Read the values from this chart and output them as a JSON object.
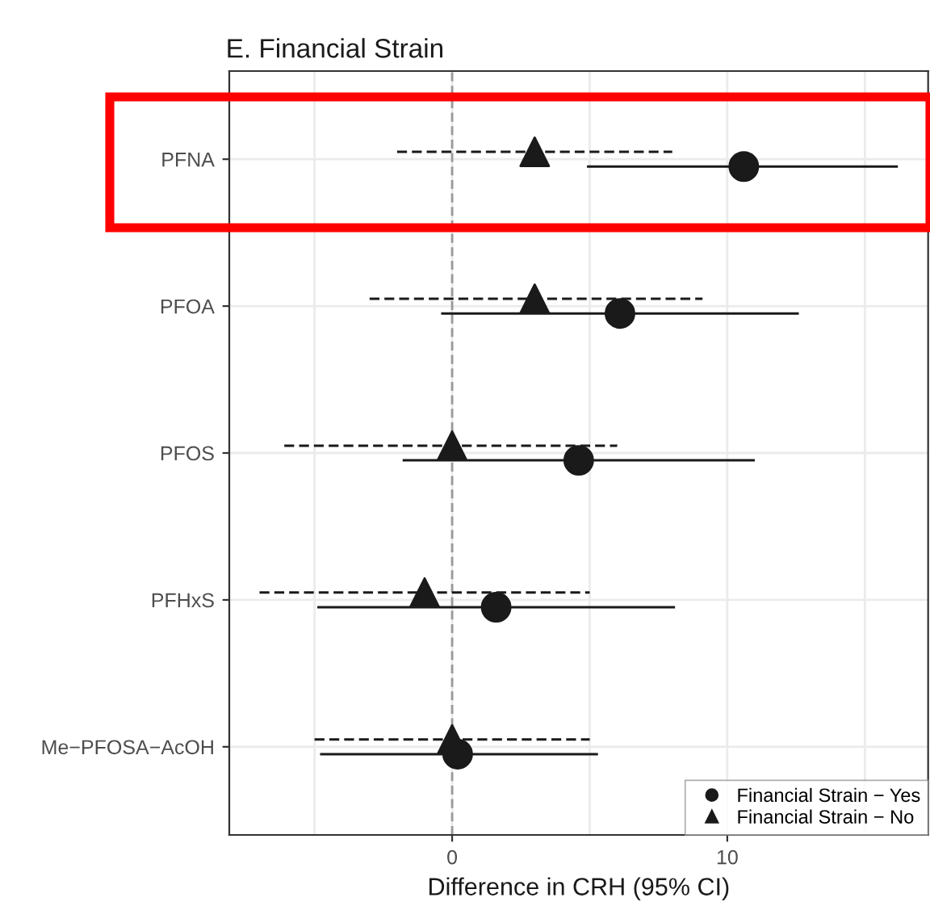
{
  "chart_data": {
    "type": "scatter",
    "orientation": "horizontal",
    "title": "E. Financial Strain",
    "xlabel": "Difference in CRH (95% CI)",
    "categories": [
      "PFNA",
      "PFOA",
      "PFOS",
      "PFHxS",
      "Me−PFOSA−AcOH"
    ],
    "series": [
      {
        "name": "Financial Strain − Yes",
        "color": "#1a1a1a",
        "marker": "circle",
        "line_style": "solid",
        "values": [
          10.6,
          6.1,
          4.6,
          1.6,
          0.2
        ],
        "errors": [
          [
            4.9,
            16.2
          ],
          [
            -0.4,
            12.6
          ],
          [
            -1.8,
            11.0
          ],
          [
            -4.9,
            8.1
          ],
          [
            -4.8,
            5.3
          ]
        ]
      },
      {
        "name": "Financial Strain − No",
        "color": "#1a1a1a",
        "marker": "triangle",
        "line_style": "dashed",
        "values": [
          3.0,
          3.0,
          0.0,
          -1.0,
          0.0
        ],
        "errors": [
          [
            -2.0,
            8.0
          ],
          [
            -3.0,
            9.1
          ],
          [
            -6.1,
            6.0
          ],
          [
            -7.0,
            5.0
          ],
          [
            -5.0,
            5.0
          ]
        ]
      }
    ],
    "xlim": [
      -8.1,
      17.3
    ],
    "xticks": [
      {
        "value": -5,
        "label": null
      },
      0,
      {
        "value": 5,
        "label": null
      },
      10,
      {
        "value": 15,
        "label": null
      }
    ],
    "ref_lines": [
      {
        "axis": "x",
        "value": 0,
        "label": null,
        "color": "#999999",
        "line_style": "dashed"
      }
    ],
    "grid": true,
    "legend": "bottom right"
  }
}
